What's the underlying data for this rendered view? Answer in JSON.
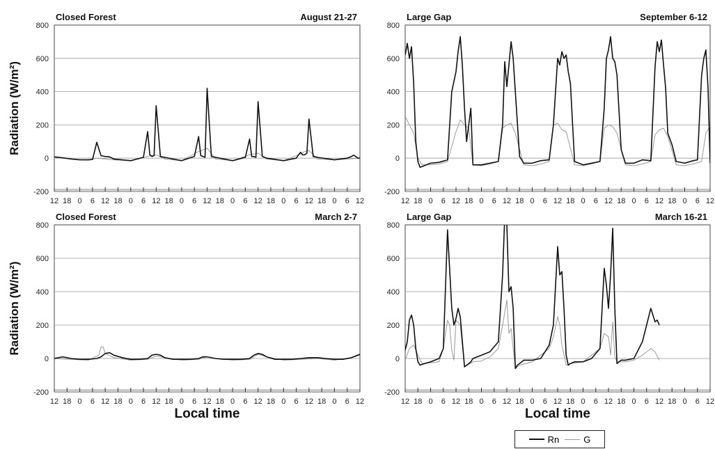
{
  "figure": {
    "ylabel": "Radiation (W/m²)",
    "xlabel": "Local time",
    "legend": [
      {
        "name": "Rn",
        "color": "#111111"
      },
      {
        "name": "G",
        "color": "#9a9a9a"
      }
    ]
  },
  "chart_data": [
    {
      "type": "line",
      "title": "Closed Forest",
      "period": "August 21-27",
      "ylabel": "Radiation (W/m²)",
      "xlabel": "",
      "ylim": [
        -200,
        800
      ],
      "yticks": [
        -200,
        0,
        200,
        400,
        600,
        800
      ],
      "xlim": [
        12,
        156
      ],
      "xtick_labels": [
        "12",
        "18",
        "0",
        "6",
        "12",
        "18",
        "0",
        "6",
        "12",
        "18",
        "0",
        "6",
        "12",
        "18",
        "0",
        "6",
        "12",
        "18",
        "0",
        "6",
        "12",
        "18",
        "0",
        "6",
        "12"
      ],
      "grid": true,
      "series": [
        {
          "name": "Rn",
          "x": [
            12,
            16,
            20,
            24,
            28,
            30,
            32,
            34,
            36,
            38,
            40,
            48,
            54,
            56,
            57,
            58,
            59,
            60,
            62,
            64,
            72,
            78,
            80,
            81,
            82,
            83,
            84,
            86,
            88,
            96,
            102,
            104,
            105,
            106,
            107,
            108,
            110,
            112,
            120,
            126,
            128,
            129,
            130,
            131,
            132,
            134,
            136,
            144,
            150,
            152,
            153,
            154,
            155,
            156
          ],
          "y": [
            8,
            2,
            -5,
            -10,
            -10,
            -8,
            95,
            15,
            10,
            8,
            -5,
            -15,
            5,
            160,
            20,
            10,
            15,
            315,
            10,
            5,
            -15,
            10,
            130,
            15,
            10,
            5,
            420,
            10,
            5,
            -15,
            5,
            115,
            10,
            10,
            5,
            340,
            10,
            0,
            -15,
            0,
            35,
            20,
            20,
            30,
            235,
            10,
            5,
            -10,
            0,
            10,
            18,
            10,
            0,
            0
          ]
        },
        {
          "name": "G",
          "x": [
            12,
            20,
            28,
            32,
            40,
            48,
            56,
            58,
            60,
            64,
            72,
            80,
            82,
            84,
            88,
            96,
            104,
            106,
            108,
            112,
            120,
            128,
            130,
            132,
            136,
            144,
            156
          ],
          "y": [
            5,
            -5,
            -12,
            0,
            -10,
            -15,
            10,
            15,
            20,
            -5,
            -15,
            40,
            50,
            60,
            -5,
            -15,
            20,
            25,
            30,
            -5,
            -15,
            25,
            40,
            45,
            -5,
            -10,
            0
          ]
        }
      ]
    },
    {
      "type": "line",
      "title": "Large Gap",
      "period": "September 6-12",
      "ylabel": "",
      "xlabel": "",
      "ylim": [
        -200,
        800
      ],
      "yticks": [
        -200,
        0,
        200,
        400,
        600,
        800
      ],
      "xlim": [
        12,
        156
      ],
      "xtick_labels": [
        "12",
        "18",
        "0",
        "6",
        "12",
        "18",
        "0",
        "6",
        "12",
        "18",
        "0",
        "6",
        "12",
        "18",
        "0",
        "6",
        "12",
        "18",
        "0",
        "6",
        "12",
        "18",
        "0",
        "6",
        "12"
      ],
      "grid": true,
      "series": [
        {
          "name": "Rn",
          "x": [
            12,
            13,
            14,
            15,
            16,
            17,
            18,
            19,
            20,
            24,
            28,
            32,
            34,
            36,
            37,
            38,
            39,
            40,
            41,
            42,
            43,
            44,
            48,
            52,
            56,
            58,
            59,
            60,
            61,
            62,
            63,
            64,
            66,
            68,
            72,
            76,
            80,
            82,
            84,
            85,
            86,
            87,
            88,
            89,
            90,
            92,
            96,
            100,
            104,
            106,
            107,
            108,
            109,
            110,
            111,
            112,
            114,
            116,
            120,
            124,
            128,
            130,
            131,
            132,
            133,
            134,
            135,
            136,
            138,
            140,
            144,
            148,
            150,
            151,
            152,
            153,
            154,
            155,
            156
          ],
          "y": [
            620,
            690,
            600,
            670,
            450,
            100,
            -20,
            -55,
            -50,
            -30,
            -25,
            -10,
            400,
            520,
            640,
            730,
            560,
            300,
            100,
            200,
            300,
            -40,
            -40,
            -30,
            -20,
            200,
            580,
            430,
            560,
            700,
            600,
            400,
            10,
            -30,
            -30,
            -15,
            -10,
            200,
            600,
            560,
            640,
            600,
            620,
            520,
            450,
            -20,
            -40,
            -30,
            -20,
            300,
            600,
            650,
            730,
            600,
            580,
            500,
            50,
            -30,
            -30,
            -10,
            -15,
            550,
            700,
            640,
            710,
            560,
            420,
            150,
            80,
            -20,
            -30,
            -15,
            -10,
            250,
            500,
            600,
            650,
            420,
            -30
          ]
        },
        {
          "name": "G",
          "x": [
            12,
            14,
            16,
            18,
            20,
            24,
            28,
            32,
            36,
            38,
            40,
            42,
            44,
            48,
            52,
            56,
            58,
            60,
            62,
            64,
            68,
            72,
            76,
            80,
            82,
            84,
            86,
            88,
            92,
            96,
            100,
            104,
            106,
            108,
            110,
            112,
            116,
            120,
            124,
            128,
            130,
            132,
            134,
            136,
            140,
            144,
            148,
            152,
            154,
            156
          ],
          "y": [
            250,
            200,
            150,
            0,
            -40,
            -40,
            -35,
            -20,
            160,
            230,
            200,
            180,
            -40,
            -45,
            -35,
            -20,
            180,
            200,
            210,
            150,
            -40,
            -45,
            -35,
            -20,
            200,
            210,
            170,
            160,
            -40,
            -45,
            -35,
            -20,
            180,
            200,
            190,
            150,
            -40,
            -45,
            -35,
            -20,
            140,
            170,
            180,
            130,
            -40,
            -45,
            -35,
            -20,
            150,
            190
          ]
        }
      ]
    },
    {
      "type": "line",
      "title": "Closed Forest",
      "period": "March 2-7",
      "ylabel": "Radiation (W/m²)",
      "xlabel": "Local time",
      "ylim": [
        -200,
        800
      ],
      "yticks": [
        -200,
        0,
        200,
        400,
        600,
        800
      ],
      "xlim": [
        12,
        156
      ],
      "xtick_labels": [
        "12",
        "18",
        "0",
        "6",
        "12",
        "18",
        "0",
        "6",
        "12",
        "18",
        "0",
        "6",
        "12",
        "18",
        "0",
        "6",
        "12",
        "18",
        "0",
        "6",
        "12",
        "18",
        "0",
        "6",
        "12"
      ],
      "grid": true,
      "series": [
        {
          "name": "Rn",
          "x": [
            12,
            16,
            20,
            24,
            28,
            32,
            34,
            36,
            38,
            40,
            44,
            48,
            52,
            56,
            58,
            60,
            62,
            64,
            68,
            72,
            76,
            80,
            82,
            84,
            88,
            92,
            96,
            100,
            104,
            106,
            108,
            110,
            112,
            116,
            120,
            124,
            128,
            132,
            136,
            140,
            144,
            148,
            152,
            156
          ],
          "y": [
            0,
            10,
            0,
            -5,
            -5,
            0,
            10,
            30,
            35,
            20,
            5,
            -5,
            -5,
            0,
            20,
            25,
            20,
            5,
            -5,
            -5,
            -5,
            0,
            10,
            10,
            0,
            -5,
            -5,
            -5,
            0,
            20,
            30,
            25,
            10,
            -5,
            -5,
            -5,
            0,
            5,
            5,
            0,
            -5,
            -5,
            5,
            25
          ]
        },
        {
          "name": "G",
          "x": [
            12,
            20,
            28,
            33,
            34,
            35,
            36,
            40,
            48,
            56,
            60,
            64,
            72,
            80,
            84,
            88,
            96,
            104,
            108,
            112,
            120,
            128,
            136,
            144,
            152,
            156
          ],
          "y": [
            0,
            -5,
            -10,
            20,
            70,
            70,
            30,
            5,
            -10,
            -5,
            15,
            5,
            -10,
            -5,
            10,
            0,
            -10,
            -5,
            25,
            10,
            -10,
            -5,
            0,
            -10,
            5,
            20
          ]
        }
      ]
    },
    {
      "type": "line",
      "title": "Large Gap",
      "period": "March 16-21",
      "ylabel": "",
      "xlabel": "Local time",
      "ylim": [
        -200,
        800
      ],
      "yticks": [
        -200,
        0,
        200,
        400,
        600,
        800
      ],
      "xlim": [
        12,
        156
      ],
      "xtick_labels": [
        "12",
        "18",
        "0",
        "6",
        "12",
        "18",
        "0",
        "6",
        "12",
        "18",
        "0",
        "6",
        "12",
        "18",
        "0",
        "6",
        "12",
        "18",
        "0",
        "6",
        "12",
        "18",
        "0",
        "6",
        "12"
      ],
      "grid": true,
      "series": [
        {
          "name": "Rn",
          "x": [
            12,
            13,
            14,
            15,
            16,
            17,
            18,
            19,
            20,
            24,
            28,
            30,
            32,
            34,
            35,
            36,
            37,
            38,
            40,
            41,
            42,
            43,
            44,
            48,
            52,
            56,
            58,
            59,
            60,
            61,
            62,
            63,
            64,
            65,
            66,
            68,
            72,
            76,
            80,
            82,
            84,
            85,
            86,
            87,
            88,
            89,
            90,
            92,
            96,
            100,
            104,
            106,
            107,
            108,
            109,
            110,
            111,
            112,
            113,
            114,
            116,
            120,
            124,
            128,
            130,
            131,
            132
          ],
          "y": [
            50,
            100,
            230,
            260,
            200,
            60,
            -20,
            -40,
            -35,
            -20,
            0,
            60,
            770,
            300,
            200,
            240,
            300,
            250,
            -50,
            -40,
            -30,
            -20,
            0,
            20,
            40,
            100,
            500,
            850,
            800,
            400,
            430,
            300,
            -60,
            -40,
            -30,
            -10,
            -10,
            0,
            80,
            200,
            670,
            500,
            520,
            300,
            20,
            -40,
            -30,
            -20,
            -20,
            0,
            60,
            540,
            440,
            300,
            500,
            780,
            300,
            -30,
            -20,
            -10,
            -10,
            0,
            100,
            300,
            220,
            230,
            200
          ]
        },
        {
          "name": "G",
          "x": [
            12,
            14,
            16,
            18,
            20,
            24,
            28,
            30,
            32,
            33,
            34,
            35,
            36,
            38,
            40,
            44,
            48,
            52,
            56,
            58,
            60,
            61,
            62,
            64,
            66,
            72,
            80,
            82,
            84,
            85,
            86,
            88,
            90,
            96,
            104,
            106,
            108,
            109,
            110,
            111,
            112,
            116,
            120,
            124,
            128,
            130,
            132
          ],
          "y": [
            -10,
            60,
            80,
            20,
            -30,
            -25,
            -20,
            60,
            230,
            200,
            50,
            -10,
            230,
            200,
            -50,
            -20,
            -15,
            10,
            60,
            200,
            350,
            150,
            180,
            -60,
            -40,
            -20,
            60,
            130,
            250,
            200,
            80,
            -40,
            -30,
            -20,
            60,
            150,
            130,
            20,
            220,
            10,
            -20,
            -20,
            -10,
            20,
            60,
            40,
            -10
          ]
        }
      ]
    }
  ]
}
